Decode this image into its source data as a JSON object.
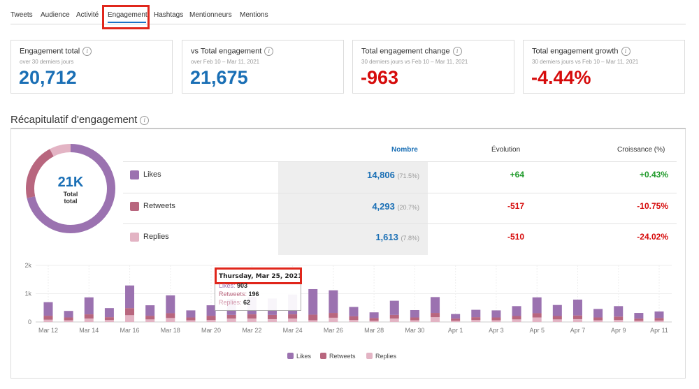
{
  "tabs": [
    {
      "label": "Tweets"
    },
    {
      "label": "Audience"
    },
    {
      "label": "Activité"
    },
    {
      "label": "Engagement"
    },
    {
      "label": "Hashtags"
    },
    {
      "label": "Mentionneurs"
    },
    {
      "label": "Mentions"
    }
  ],
  "active_tab": "Engagement",
  "cards": [
    {
      "title": "Engagement total",
      "subtitle": "over 30 derniers jours",
      "value": "20,712"
    },
    {
      "title": "vs Total engagement",
      "subtitle": "over Feb 10 – Mar 11, 2021",
      "value": "21,675"
    },
    {
      "title": "Total engagement change",
      "subtitle": "30 derniers jours vs Feb 10 – Mar 11, 2021",
      "value": "-963"
    },
    {
      "title": "Total engagement growth",
      "subtitle": "30 derniers jours vs Feb 10 – Mar 11, 2021",
      "value": "-4.44%"
    }
  ],
  "summary": {
    "title": "Récapitulatif d'engagement",
    "donut": {
      "value": "21K",
      "label1": "Total",
      "label2": "total"
    },
    "columns": {
      "nombre": "Nombre",
      "evolution": "Évolution",
      "croissance": "Croissance (%)"
    },
    "rows": [
      {
        "label": "Likes",
        "number": "14,806",
        "pct": "(71.5%)",
        "evolution": "+64",
        "growth": "+0.43%"
      },
      {
        "label": "Retweets",
        "number": "4,293",
        "pct": "(20.7%)",
        "evolution": "-517",
        "growth": "-10.75%"
      },
      {
        "label": "Replies",
        "number": "1,613",
        "pct": "(7.8%)",
        "evolution": "-510",
        "growth": "-24.02%"
      }
    ]
  },
  "colors": {
    "likes": "#9b72b0",
    "retweets": "#b8667e",
    "replies": "#e3b4c4",
    "accent_blue": "#1a6fb5",
    "positive": "#1f9a2a",
    "negative": "#d60b0b",
    "highlight_box": "#e0261b"
  },
  "tooltip": {
    "date": "Thursday, Mar 25, 2021",
    "likes_label": "Likes",
    "likes_value": "903",
    "retweets_label": "Retweets",
    "retweets_value": "196",
    "replies_label": "Replies",
    "replies_value": "62"
  },
  "chart_data": {
    "type": "bar",
    "stacked": true,
    "categories": [
      "Mar 12",
      "Mar 13",
      "Mar 14",
      "Mar 15",
      "Mar 16",
      "Mar 17",
      "Mar 18",
      "Mar 19",
      "Mar 20",
      "Mar 21",
      "Mar 22",
      "Mar 23",
      "Mar 24",
      "Mar 25",
      "Mar 26",
      "Mar 27",
      "Mar 28",
      "Mar 29",
      "Mar 30",
      "Mar 31",
      "Apr 1",
      "Apr 2",
      "Apr 3",
      "Apr 4",
      "Apr 5",
      "Apr 6",
      "Apr 7",
      "Apr 8",
      "Apr 9",
      "Apr 10",
      "Apr 11"
    ],
    "x_tick_labels": [
      "Mar 12",
      "Mar 14",
      "Mar 16",
      "Mar 18",
      "Mar 20",
      "Mar 22",
      "Mar 24",
      "Mar 26",
      "Mar 28",
      "Mar 30",
      "Apr 1",
      "Apr 3",
      "Apr 5",
      "Apr 7",
      "Apr 9",
      "Apr 11"
    ],
    "y_tick_labels": [
      "0",
      "1k",
      "2k"
    ],
    "ylim": [
      0,
      2000
    ],
    "grid": true,
    "legend_position": "bottom-center",
    "series": [
      {
        "name": "Likes",
        "values": [
          480,
          230,
          600,
          320,
          800,
          370,
          630,
          250,
          370,
          560,
          620,
          580,
          700,
          903,
          800,
          330,
          200,
          500,
          260,
          560,
          160,
          260,
          250,
          350,
          560,
          390,
          560,
          300,
          370,
          200,
          230
        ]
      },
      {
        "name": "Retweets",
        "values": [
          140,
          100,
          150,
          100,
          250,
          130,
          170,
          100,
          150,
          130,
          150,
          150,
          150,
          196,
          170,
          130,
          100,
          130,
          100,
          150,
          80,
          100,
          100,
          120,
          150,
          120,
          130,
          100,
          120,
          80,
          90
        ]
      },
      {
        "name": "Replies",
        "values": [
          80,
          60,
          120,
          70,
          240,
          90,
          140,
          60,
          70,
          120,
          120,
          100,
          120,
          62,
          150,
          70,
          40,
          120,
          60,
          170,
          40,
          70,
          60,
          90,
          160,
          90,
          100,
          60,
          70,
          40,
          50
        ]
      }
    ]
  }
}
